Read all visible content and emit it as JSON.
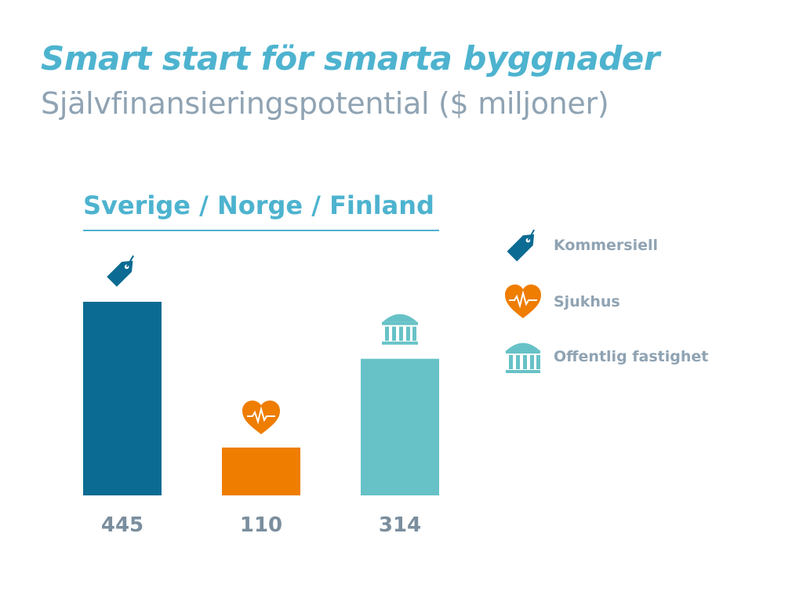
{
  "title": "Smart start för smarta byggnader",
  "subtitle": "Självfinansieringspotential ($ miljoner)",
  "chart_data": {
    "type": "bar",
    "title": "Sverige / Norge / Finland",
    "categories": [
      "Kommersiell",
      "Sjukhus",
      "Offentlig fastighet"
    ],
    "values": [
      445,
      110,
      314
    ],
    "value_labels": [
      "445",
      "110",
      "314"
    ],
    "colors": [
      "#0b6b92",
      "#ee7d00",
      "#67c2c7"
    ],
    "icons": [
      "tag-icon",
      "heart-pulse-icon",
      "building-columns-icon"
    ],
    "ylim": [
      0,
      445
    ],
    "grid": false,
    "legend_position": "right"
  },
  "colors": {
    "title": "#4db3cf",
    "subtitle": "#8fa3b3",
    "value_labels": "#7a8e9e"
  }
}
